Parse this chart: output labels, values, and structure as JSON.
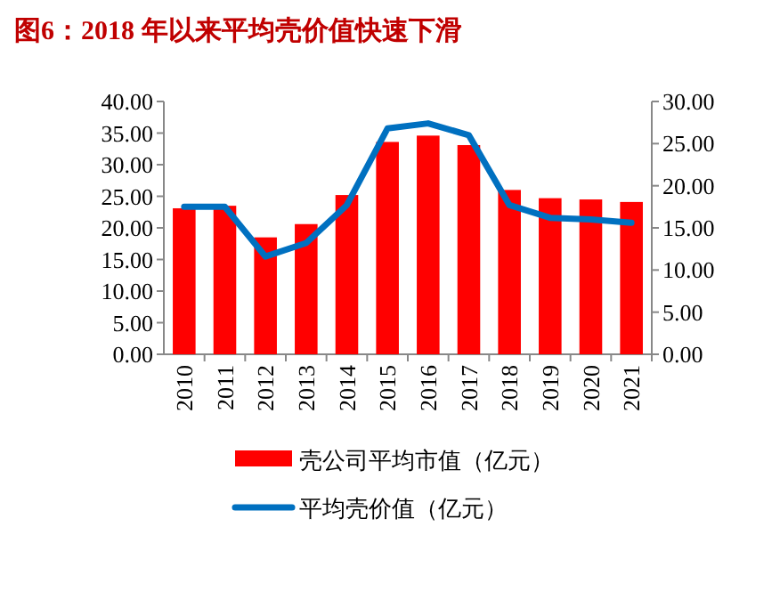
{
  "chart_data": {
    "type": "bar",
    "title": "图6：2018 年以来平均壳价值快速下滑",
    "categories": [
      "2010",
      "2011",
      "2012",
      "2013",
      "2014",
      "2015",
      "2016",
      "2017",
      "2018",
      "2019",
      "2020",
      "2021"
    ],
    "series": [
      {
        "name": "壳公司平均市值（亿元）",
        "color": "#ff0000",
        "values": [
          23.1,
          23.5,
          18.5,
          20.6,
          25.2,
          33.6,
          34.6,
          33.1,
          26.0,
          24.7,
          24.5,
          24.1
        ]
      },
      {
        "name": "平均壳价值（亿元）",
        "type": "line",
        "axis": "y2",
        "color": "#0070c0",
        "values": [
          17.5,
          17.5,
          11.6,
          13.2,
          17.7,
          26.8,
          27.4,
          26.0,
          17.7,
          16.2,
          16.0,
          15.6
        ]
      }
    ],
    "ylim": [
      0,
      40
    ],
    "yticks": [
      {
        "value": 0,
        "label": "0.00"
      },
      {
        "value": 5,
        "label": "5.00"
      },
      {
        "value": 10,
        "label": "10.00"
      },
      {
        "value": 15,
        "label": "15.00"
      },
      {
        "value": 20,
        "label": "20.00"
      },
      {
        "value": 25,
        "label": "25.00"
      },
      {
        "value": 30,
        "label": "30.00"
      },
      {
        "value": 35,
        "label": "35.00"
      },
      {
        "value": 40,
        "label": "40.00"
      }
    ],
    "y2lim": [
      0,
      30
    ],
    "y2ticks": [
      {
        "value": 0,
        "label": "0.00"
      },
      {
        "value": 5,
        "label": "5.00"
      },
      {
        "value": 10,
        "label": "10.00"
      },
      {
        "value": 15,
        "label": "15.00"
      },
      {
        "value": 20,
        "label": "20.00"
      },
      {
        "value": 25,
        "label": "25.00"
      },
      {
        "value": 30,
        "label": "30.00"
      }
    ],
    "grid": false,
    "legend": "bottom",
    "marker": "none",
    "line_style": "solid"
  }
}
